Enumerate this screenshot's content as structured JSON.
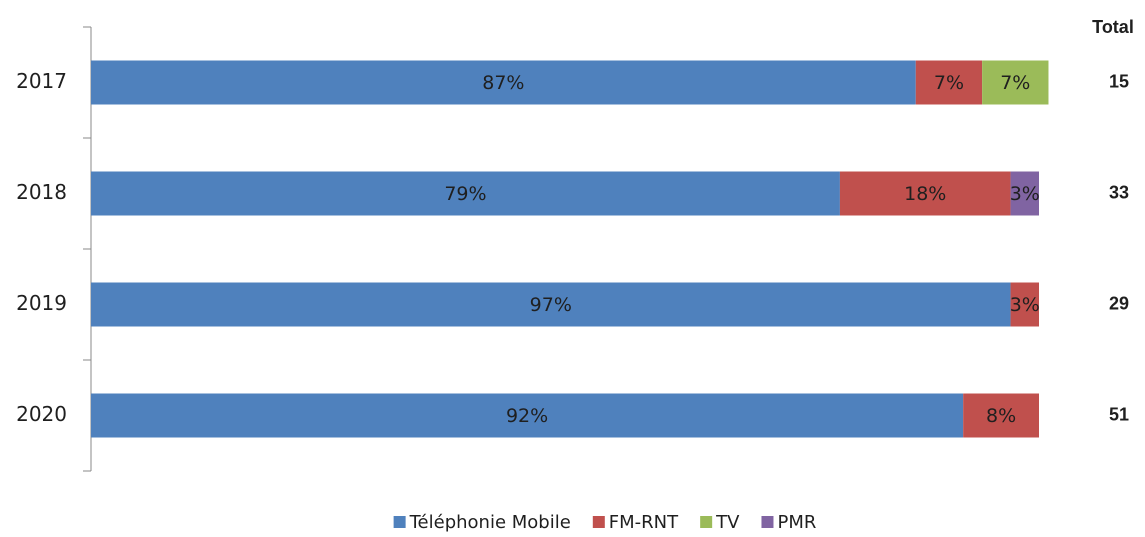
{
  "chart_data": {
    "type": "stacked-bar-horizontal",
    "categories": [
      "2017",
      "2018",
      "2019",
      "2020"
    ],
    "series": [
      {
        "name": "Téléphonie Mobile",
        "color": "#4f81bd",
        "values": [
          87,
          79,
          97,
          92
        ],
        "value_labels": [
          "87%",
          "79%",
          "97%",
          "92%"
        ]
      },
      {
        "name": "FM-RNT",
        "color": "#c0504d",
        "values": [
          7,
          18,
          3,
          8
        ],
        "value_labels": [
          "7%",
          "18%",
          "3%",
          "8%"
        ]
      },
      {
        "name": "TV",
        "color": "#9bbb59",
        "values": [
          7,
          null,
          null,
          null
        ],
        "value_labels": [
          "7%",
          null,
          null,
          null
        ]
      },
      {
        "name": "PMR",
        "color": "#8064a2",
        "values": [
          null,
          3,
          null,
          null
        ],
        "value_labels": [
          null,
          "3%",
          null,
          null
        ]
      }
    ],
    "xlim": [
      0,
      100
    ],
    "legend": "bottom",
    "totals": {
      "label": "Total",
      "values": [
        15,
        33,
        29,
        51
      ]
    }
  }
}
